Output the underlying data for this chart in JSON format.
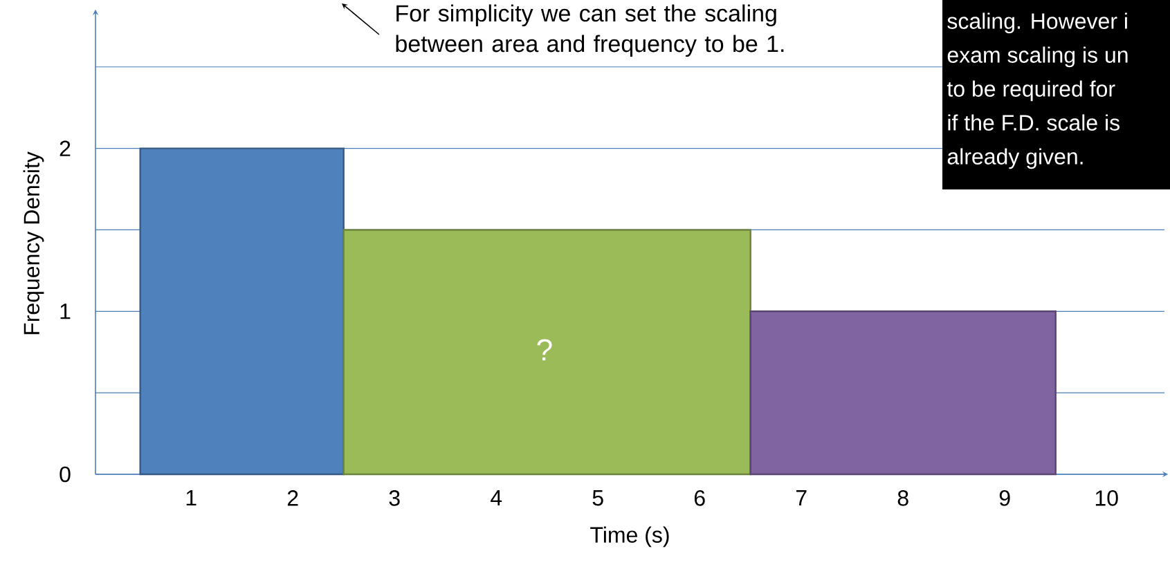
{
  "chart_data": {
    "type": "histogram",
    "xlabel": "Time (s)",
    "ylabel": "Frequency Density",
    "bins": [
      0.5,
      2.5,
      6.5,
      9.5
    ],
    "values": [
      2,
      1.5,
      1
    ],
    "colors": [
      "#4f81bd",
      "#9bbb59",
      "#8064a2"
    ],
    "xlim": [
      0.06,
      10.57
    ],
    "ylim": [
      0,
      2.83
    ],
    "xticks": [
      1,
      2,
      3,
      4,
      5,
      6,
      7,
      8,
      9,
      10
    ],
    "yticks": [
      0,
      {
        "value": 0.5,
        "label": null
      },
      1,
      {
        "value": 1.5,
        "label": null
      },
      2,
      {
        "value": 2.5,
        "label": null
      }
    ],
    "grid": "y",
    "annotations": [
      "?",
      "For simplicity we can set the scaling between area and frequency to be 1.",
      "scaling. However i",
      "exam scaling is un",
      "to be required for",
      "if the F.D. scale is",
      "already given."
    ]
  }
}
